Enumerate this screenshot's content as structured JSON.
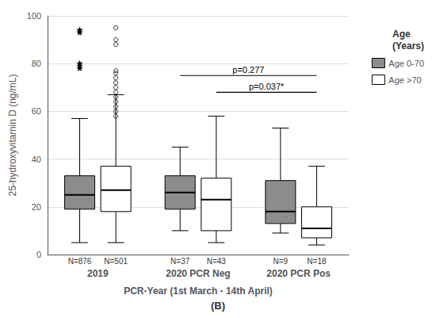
{
  "chart_data": {
    "type": "boxplot",
    "subtitle": "(B)",
    "xlabel": "PCR-Year (1st March - 14th April)",
    "ylabel": "25-hydroxyvitamin D (ng/mL)",
    "categories": [
      "2019",
      "2020 PCR Neg",
      "2020 PCR Pos"
    ],
    "series": [
      {
        "name": "Age 0-70",
        "color": "#8c8c8c",
        "marker": "star",
        "values": [
          {
            "low": 5,
            "q1": 19,
            "median": 25,
            "q3": 33,
            "high": 57
          },
          {
            "low": 10,
            "q1": 19,
            "median": 26,
            "q3": 33,
            "high": 45
          },
          {
            "low": 9,
            "q1": 13,
            "median": 18,
            "q3": 31,
            "high": 53
          }
        ],
        "outliers": [
          [
            79,
            78,
            80,
            93,
            94
          ],
          [],
          []
        ],
        "n_labels": [
          "N=876",
          "N=37",
          "N=9"
        ]
      },
      {
        "name": "Age >70",
        "color": "#ffffff",
        "marker": "circle",
        "values": [
          {
            "low": 5,
            "q1": 18,
            "median": 27,
            "q3": 37,
            "high": 67
          },
          {
            "low": 5,
            "q1": 10,
            "median": 23,
            "q3": 32,
            "high": 58
          },
          {
            "low": 4,
            "q1": 7,
            "median": 11,
            "q3": 20,
            "high": 37
          }
        ],
        "outliers": [
          [
            58,
            60,
            62,
            64,
            66,
            68,
            70,
            72,
            74,
            76,
            77,
            88,
            90,
            95
          ],
          [],
          []
        ],
        "n_labels": [
          "N=501",
          "N=43",
          "N=18"
        ]
      }
    ],
    "annotations": [
      {
        "text": "p=0.277",
        "y": 75,
        "from": {
          "category": "2020 PCR Neg",
          "series": "Age 0-70"
        },
        "to": {
          "category": "2020 PCR Pos",
          "series": "Age >70"
        }
      },
      {
        "text": "p=0.037*",
        "y": 68,
        "from": {
          "category": "2020 PCR Neg",
          "series": "Age >70"
        },
        "to": {
          "category": "2020 PCR Pos",
          "series": "Age >70"
        }
      }
    ],
    "ylim": [
      0,
      100
    ],
    "yticks": [
      0,
      20,
      40,
      60,
      80,
      100
    ],
    "grid": true,
    "legend": "upper right",
    "legend_title": "Age\n(Years)"
  }
}
